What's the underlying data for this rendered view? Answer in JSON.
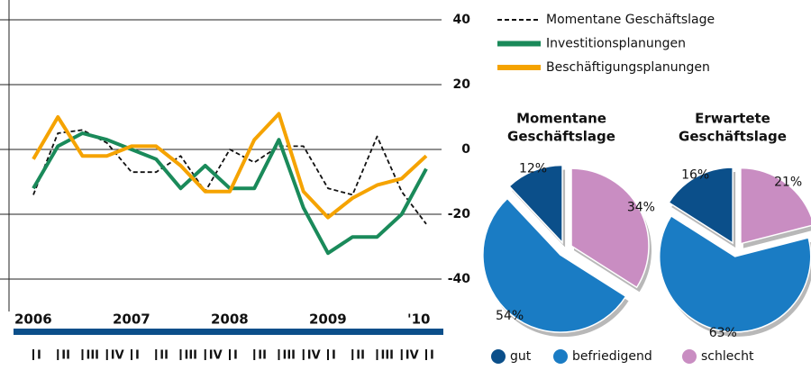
{
  "chart_data": [
    {
      "type": "line",
      "categories": [
        "I",
        "II",
        "III",
        "IV",
        "I",
        "II",
        "III",
        "IV",
        "I",
        "II",
        "III",
        "IV",
        "I",
        "II",
        "III",
        "IV",
        "I"
      ],
      "years": [
        "2006",
        "2007",
        "2008",
        "2009",
        "'10"
      ],
      "ylim": [
        -50,
        45
      ],
      "yticks": [
        40,
        20,
        0,
        -20,
        -40
      ],
      "grid": true,
      "series": [
        {
          "name": "Momentane Geschäftslage",
          "color": "#111111",
          "dash": true,
          "values": [
            -14,
            5,
            6,
            2,
            -7,
            -7,
            -2,
            -13,
            0,
            -4,
            1,
            1,
            -12,
            -14,
            4,
            -13,
            -23
          ]
        },
        {
          "name": "Investitionsplanungen",
          "color": "#1a8a5a",
          "dash": false,
          "values": [
            -12,
            1,
            5,
            3,
            0,
            -3,
            -12,
            -5,
            -12,
            -12,
            3,
            -18,
            -32,
            -27,
            -27,
            -20,
            -6
          ]
        },
        {
          "name": "Beschäftigungsplanungen",
          "color": "#f5a300",
          "dash": false,
          "values": [
            -3,
            10,
            -2,
            -2,
            1,
            1,
            -5,
            -13,
            -13,
            3,
            11,
            -13,
            -21,
            -15,
            -11,
            -9,
            -2
          ]
        }
      ]
    },
    {
      "type": "pie",
      "categories": [
        "gut",
        "befriedigend",
        "schlecht"
      ],
      "colors": [
        "#0b4f8a",
        "#1a7cc4",
        "#c98dc2"
      ],
      "pies": [
        {
          "title": [
            "Momentane",
            "Geschäftslage"
          ],
          "values": [
            12,
            54,
            34
          ],
          "value_labels": [
            "12%",
            "54%",
            "34%"
          ]
        },
        {
          "title": [
            "Erwartete",
            "Geschäftslage"
          ],
          "values": [
            16,
            63,
            21
          ],
          "value_labels": [
            "16%",
            "63%",
            "21%"
          ]
        }
      ]
    }
  ]
}
